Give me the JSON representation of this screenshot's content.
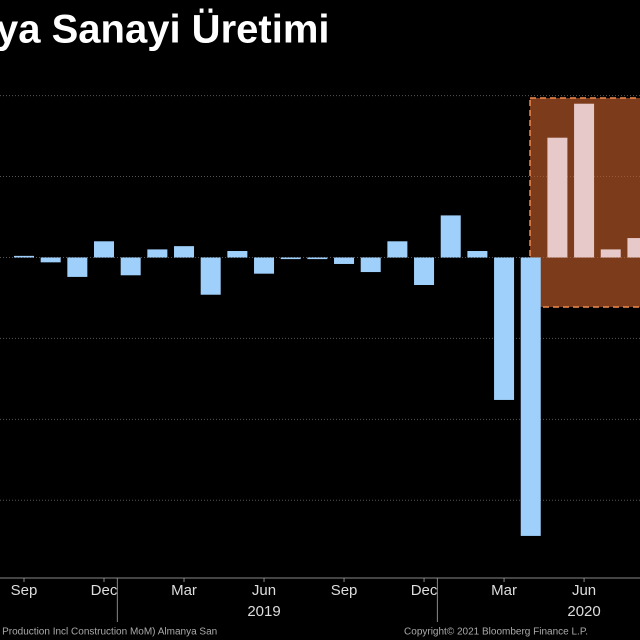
{
  "chart_data": {
    "type": "bar",
    "title": "ya Sanayi Üretimi",
    "categories": [
      "Sep",
      null,
      null,
      "Dec",
      null,
      null,
      "Mar",
      null,
      null,
      "Jun",
      null,
      null,
      "Sep",
      null,
      null,
      "Dec",
      null,
      null,
      "Mar",
      null,
      null,
      "Jun",
      null,
      null
    ],
    "values": [
      0.1,
      -0.3,
      -1.2,
      1.0,
      -1.1,
      0.5,
      0.7,
      -2.3,
      0.4,
      -1.0,
      -0.1,
      -0.1,
      -0.4,
      -0.9,
      1.0,
      -1.7,
      2.6,
      0.4,
      -8.8,
      -17.2,
      7.4,
      9.5,
      0.5,
      1.2
    ],
    "color": "#9fd0fb",
    "highlight_color": "#e8c9c9",
    "year_labels": [
      {
        "label": "2019",
        "at": 9
      },
      {
        "label": "2020",
        "at": 21
      }
    ],
    "ylim": [
      -19.8,
      12.2
    ],
    "yticks": [
      -15,
      -10,
      -5,
      0,
      5,
      10
    ],
    "grid": true,
    "source": "rial Production Incl Construction MoM) Almanya San",
    "copyright": "Copyright© 2021 Bloomberg Finance L.P."
  }
}
